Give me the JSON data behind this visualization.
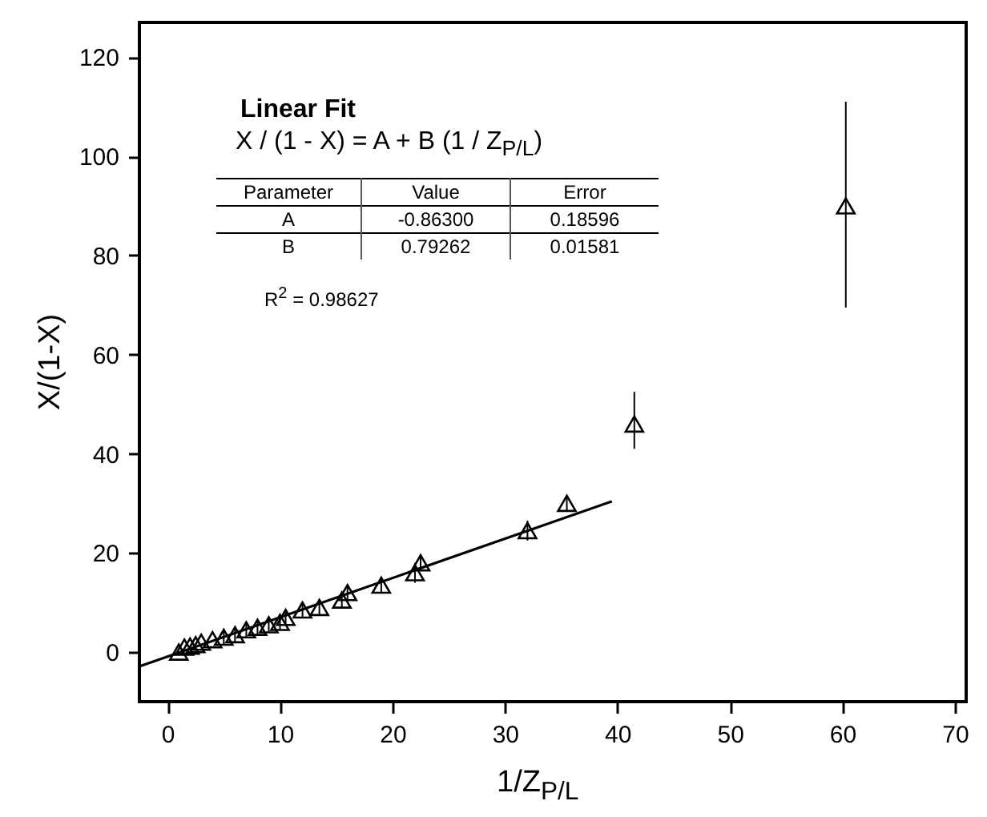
{
  "chart_data": {
    "type": "scatter",
    "xlabel": "1/Z$_{P/L}$",
    "ylabel": "X/(1-X)",
    "xlim": [
      -2.5,
      71
    ],
    "ylim": [
      -10,
      127
    ],
    "xticks": [
      0,
      10,
      20,
      30,
      40,
      50,
      60,
      70
    ],
    "yticks": [
      0,
      20,
      40,
      60,
      80,
      100,
      120
    ],
    "grid": false,
    "series": [
      {
        "color": "#000000",
        "marker": "triangle",
        "x": [
          1,
          1.5,
          2,
          2.5,
          3,
          4,
          5,
          6,
          7,
          8,
          9,
          10,
          10.5,
          12,
          13.5,
          15.5,
          16,
          19,
          22,
          22.5,
          32,
          35.5,
          41.5,
          60.3
        ],
        "values": [
          0,
          1,
          1.2,
          1.5,
          2,
          2.5,
          3,
          3.5,
          4.5,
          5,
          5.5,
          6,
          7,
          8.5,
          9,
          10.5,
          12,
          13.5,
          16,
          18,
          24.5,
          30,
          46,
          90
        ],
        "errors": [
          null,
          null,
          null,
          null,
          null,
          null,
          1.5,
          1.5,
          1.5,
          1.5,
          1.5,
          1.5,
          1.5,
          1.5,
          1.5,
          1.5,
          1.5,
          1.5,
          2,
          1.5,
          2,
          1.5,
          [
            41,
            52.5
          ],
          [
            69.5,
            111
          ]
        ]
      },
      {
        "type": "line",
        "color": "#000000",
        "line_style": "solid",
        "x": [
          -2.5,
          39.5
        ],
        "values": [
          -2.9,
          30.4
        ]
      }
    ],
    "annotations": [
      "Linear Fit",
      "X / (1 - X) = A + B (1 / Z$_{P/L}$)",
      "Parameter",
      "Value",
      "Error",
      "A",
      "-0.86300",
      "0.18596",
      "B",
      "0.79262",
      "0.01581",
      "R$^{2}$ = 0.98627"
    ]
  }
}
